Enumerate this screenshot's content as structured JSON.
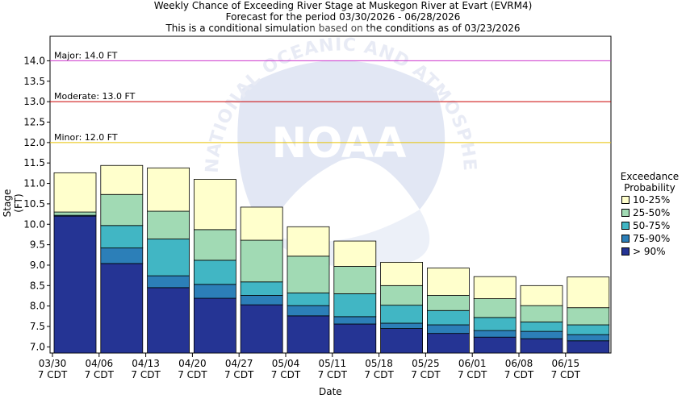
{
  "title": {
    "line1": "Weekly Chance of Exceeding River Stage at Muskegon River at Evart (EVRM4)",
    "line2": "Forecast for the period 03/30/2026 - 06/28/2026",
    "line3": "This is a conditional simulation based on the conditions as of 03/23/2026"
  },
  "legend": {
    "title_line1": "Exceedance",
    "title_line2": "Probability",
    "items": [
      {
        "label": "10-25%",
        "color": "#ffffcc"
      },
      {
        "label": "25-50%",
        "color": "#a1dab4"
      },
      {
        "label": "50-75%",
        "color": "#41b6c4"
      },
      {
        "label": "75-90%",
        "color": "#2c7fb8"
      },
      {
        "label": "> 90%",
        "color": "#253494"
      }
    ]
  },
  "watermark": {
    "logo_text": "NOAA",
    "ring_text": "NATIONAL OCEANIC AND ATMOSPHERIC ADMINISTRATION"
  },
  "chart_data": {
    "type": "bar",
    "stacked": "floating-ranges",
    "xlabel": "Date",
    "ylabel": "Stage (FT)",
    "ylim": [
      6.85,
      14.6
    ],
    "yticks": [
      7.0,
      7.5,
      8.0,
      8.5,
      9.0,
      9.5,
      10.0,
      10.5,
      11.0,
      11.5,
      12.0,
      12.5,
      13.0,
      13.5,
      14.0
    ],
    "x_ticks": [
      {
        "line1": "03/30",
        "line2": "7 CDT"
      },
      {
        "line1": "04/06",
        "line2": "7 CDT"
      },
      {
        "line1": "04/13",
        "line2": "7 CDT"
      },
      {
        "line1": "04/20",
        "line2": "7 CDT"
      },
      {
        "line1": "04/27",
        "line2": "7 CDT"
      },
      {
        "line1": "05/04",
        "line2": "7 CDT"
      },
      {
        "line1": "05/11",
        "line2": "7 CDT"
      },
      {
        "line1": "05/18",
        "line2": "7 CDT"
      },
      {
        "line1": "05/25",
        "line2": "7 CDT"
      },
      {
        "line1": "06/01",
        "line2": "7 CDT"
      },
      {
        "line1": "06/08",
        "line2": "7 CDT"
      },
      {
        "line1": "06/15",
        "line2": "7 CDT"
      }
    ],
    "thresholds": [
      {
        "label": "Major: 14.0 FT",
        "value": 14.0,
        "color": "#cc33cc"
      },
      {
        "label": "Moderate: 13.0 FT",
        "value": 13.0,
        "color": "#cc0000"
      },
      {
        "label": "Minor: 12.0 FT",
        "value": 12.0,
        "color": "#e6c200"
      }
    ],
    "series_order": [
      "> 90%",
      "75-90%",
      "50-75%",
      "25-50%",
      "10-25%"
    ],
    "weeks": [
      {
        "levels": [
          10.2,
          10.22,
          10.22,
          10.3,
          11.26
        ]
      },
      {
        "levels": [
          9.04,
          9.42,
          9.97,
          10.73,
          11.44
        ]
      },
      {
        "levels": [
          8.45,
          8.74,
          9.64,
          10.32,
          11.38
        ]
      },
      {
        "levels": [
          8.19,
          8.53,
          9.12,
          9.87,
          11.1
        ]
      },
      {
        "levels": [
          8.03,
          8.26,
          8.59,
          9.61,
          10.42
        ]
      },
      {
        "levels": [
          7.76,
          8.01,
          8.32,
          9.22,
          9.94
        ]
      },
      {
        "levels": [
          7.56,
          7.74,
          8.3,
          8.97,
          9.59
        ]
      },
      {
        "levels": [
          7.45,
          7.58,
          8.02,
          8.5,
          9.07
        ]
      },
      {
        "levels": [
          7.33,
          7.54,
          7.89,
          8.26,
          8.93
        ]
      },
      {
        "levels": [
          7.24,
          7.4,
          7.72,
          8.18,
          8.72
        ]
      },
      {
        "levels": [
          7.2,
          7.38,
          7.61,
          8.01,
          8.5
        ]
      },
      {
        "levels": [
          7.15,
          7.3,
          7.54,
          7.96,
          8.71
        ]
      }
    ]
  }
}
